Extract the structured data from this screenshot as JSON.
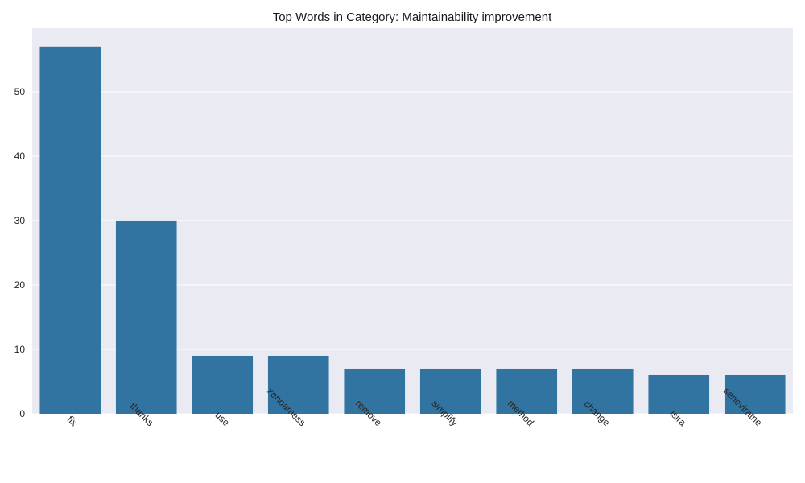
{
  "chart_data": {
    "type": "bar",
    "title": "Top Words in Category: Maintainability improvement",
    "xlabel": "",
    "ylabel": "",
    "categories": [
      "fix",
      "thanks",
      "use",
      "xenoamess",
      "remove",
      "simplify",
      "method",
      "change",
      "isira",
      "seneviratne"
    ],
    "values": [
      57,
      30,
      9,
      9,
      7,
      7,
      7,
      7,
      6,
      6
    ],
    "ylim": [
      0,
      59.85
    ],
    "yticks": [
      0,
      10,
      20,
      30,
      40,
      50
    ],
    "grid": true,
    "legend": "none",
    "colors": {
      "bar": "#3274a1",
      "plot_bg": "#eaeaf2",
      "grid": "#ffffff"
    }
  }
}
